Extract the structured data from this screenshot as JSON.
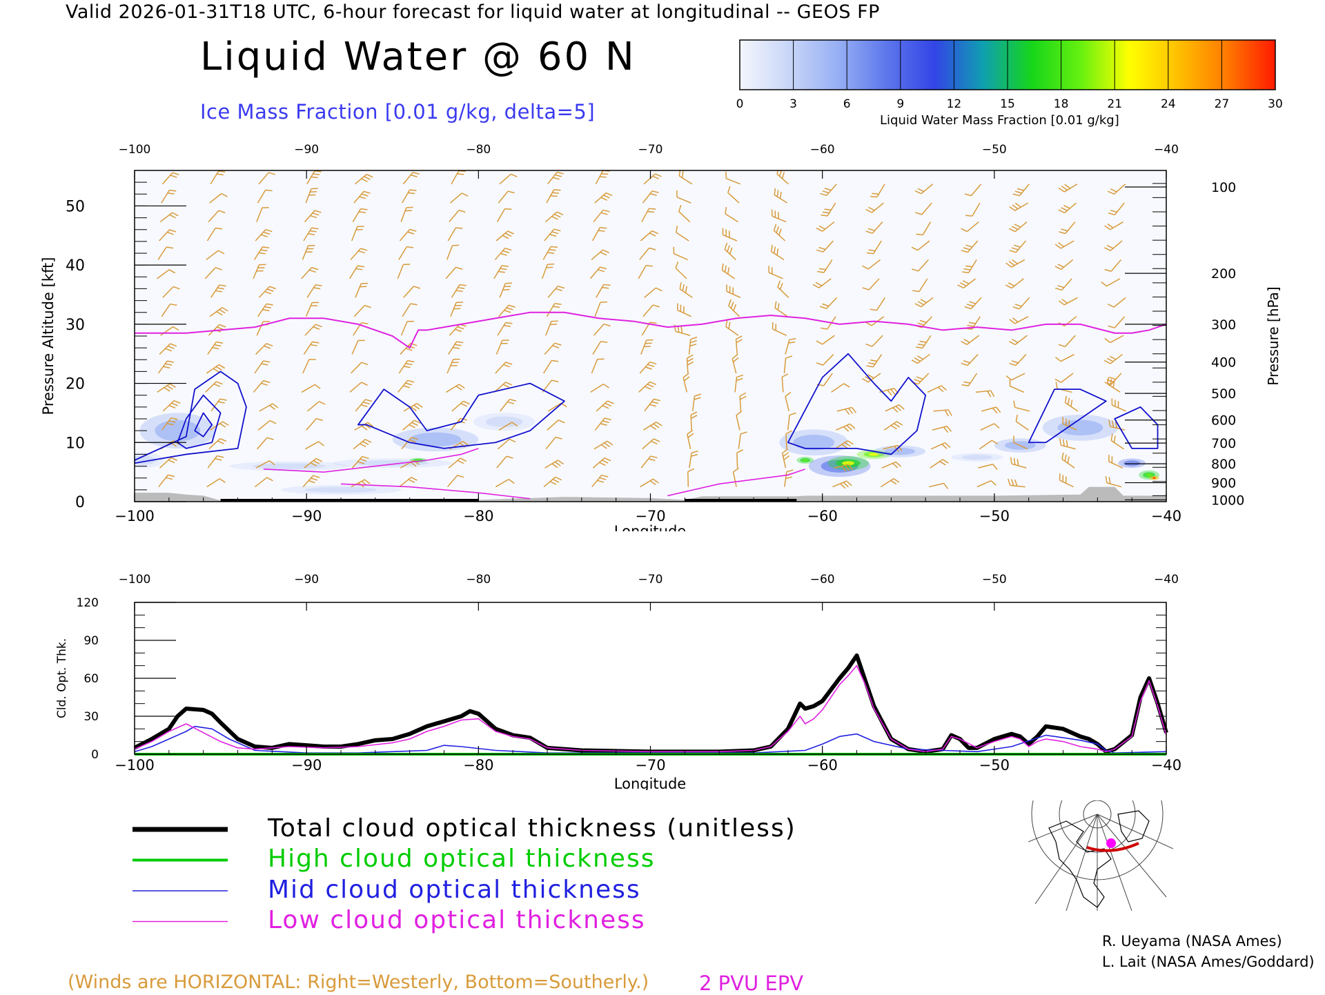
{
  "header": {
    "line": "Valid 2026-01-31T18 UTC, 6-hour forecast for liquid water at longitudinal -- GEOS FP",
    "title": "Liquid Water @ 60 N",
    "subtitle": "Ice Mass Fraction [0.01 g/kg, delta=5]"
  },
  "colorbar": {
    "label": "Liquid Water Mass Fraction [0.01 g/kg]",
    "ticks": [
      "0",
      "3",
      "6",
      "9",
      "12",
      "15",
      "18",
      "21",
      "24",
      "27",
      "30"
    ],
    "colors": [
      "#f4f6fc",
      "#c9d6f8",
      "#98b0f4",
      "#5e78ec",
      "#3344e6",
      "#0f9fb0",
      "#16d61a",
      "#66f010",
      "#ffff00",
      "#ffc000",
      "#ff7a00",
      "#ff1a00"
    ]
  },
  "colors": {
    "wind_barb": "#d89a3a",
    "pv_line": "#e020e0",
    "ice_contour": "#1010cc",
    "total": "#000000",
    "high": "#00cc00",
    "mid": "#2020e0",
    "low": "#e020e0",
    "terrain": "#bbbbbb"
  },
  "chart_data": [
    {
      "type": "heatmap",
      "title": "Liquid Water @ 60 N",
      "xlabel": "Longitude",
      "ylabel": "Pressure Altitude [kft]",
      "y2label": "Pressure [hPa]",
      "xlim": [
        -100,
        -40
      ],
      "ylim": [
        0,
        56
      ],
      "x_ticks": [
        "-100",
        "-90",
        "-80",
        "-70",
        "-60",
        "-50",
        "-40"
      ],
      "y_ticks": [
        "0",
        "10",
        "20",
        "30",
        "40",
        "50"
      ],
      "pressure_ticks": [
        {
          "label": "100",
          "kft": 53.2
        },
        {
          "label": "200",
          "kft": 38.6
        },
        {
          "label": "300",
          "kft": 30.0
        },
        {
          "label": "400",
          "kft": 23.6
        },
        {
          "label": "500",
          "kft": 18.3
        },
        {
          "label": "600",
          "kft": 13.8
        },
        {
          "label": "700",
          "kft": 9.9
        },
        {
          "label": "800",
          "kft": 6.4
        },
        {
          "label": "900",
          "kft": 3.2
        },
        {
          "label": "1000",
          "kft": 0.3
        }
      ],
      "liquid_water_blobs": [
        {
          "lon": -97.5,
          "kft": 12,
          "sx": 2.2,
          "sy": 3,
          "value": 6
        },
        {
          "lon": -99.5,
          "kft": 7,
          "sx": 1.2,
          "sy": 1.3,
          "value": 3
        },
        {
          "lon": -91,
          "kft": 6,
          "sx": 3.5,
          "sy": 0.8,
          "value": 3
        },
        {
          "lon": -85,
          "kft": 6.5,
          "sx": 3.5,
          "sy": 0.8,
          "value": 4
        },
        {
          "lon": -83.5,
          "kft": 7,
          "sx": 0.5,
          "sy": 0.4,
          "value": 16
        },
        {
          "lon": -82.5,
          "kft": 10.5,
          "sx": 2.5,
          "sy": 2,
          "value": 6
        },
        {
          "lon": -78.5,
          "kft": 13.5,
          "sx": 1.8,
          "sy": 1.5,
          "value": 4
        },
        {
          "lon": -88,
          "kft": 2,
          "sx": 3.5,
          "sy": 0.8,
          "value": 2
        },
        {
          "lon": -60.5,
          "kft": 10,
          "sx": 2,
          "sy": 2.2,
          "value": 6
        },
        {
          "lon": -61,
          "kft": 7,
          "sx": 0.5,
          "sy": 0.6,
          "value": 16
        },
        {
          "lon": -59,
          "kft": 6,
          "sx": 1.8,
          "sy": 1.8,
          "value": 9
        },
        {
          "lon": -58.5,
          "kft": 6.5,
          "sx": 1.2,
          "sy": 1.2,
          "value": 17
        },
        {
          "lon": -57,
          "kft": 8,
          "sx": 1.0,
          "sy": 0.8,
          "value": 19
        },
        {
          "lon": -55.5,
          "kft": 8.5,
          "sx": 1.5,
          "sy": 1.0,
          "value": 6
        },
        {
          "lon": -51,
          "kft": 7.5,
          "sx": 1.5,
          "sy": 0.7,
          "value": 4
        },
        {
          "lon": -48.5,
          "kft": 9.5,
          "sx": 1.5,
          "sy": 1.2,
          "value": 5
        },
        {
          "lon": -45,
          "kft": 12.5,
          "sx": 2.2,
          "sy": 2.2,
          "value": 6
        },
        {
          "lon": -42,
          "kft": 6.5,
          "sx": 0.8,
          "sy": 0.8,
          "value": 7
        },
        {
          "lon": -41,
          "kft": 4.5,
          "sx": 0.6,
          "sy": 0.8,
          "value": 16
        },
        {
          "lon": -40.7,
          "kft": 4,
          "sx": 0.3,
          "sy": 0.4,
          "value": 25
        }
      ],
      "ice_contours": [
        {
          "level": 5,
          "points": [
            [
              -100,
              7
            ],
            [
              -97,
              11
            ],
            [
              -96.5,
              19
            ],
            [
              -95,
              22
            ],
            [
              -94,
              20
            ],
            [
              -93.5,
              16
            ],
            [
              -94,
              9
            ],
            [
              -97,
              8
            ],
            [
              -100,
              6.5
            ]
          ]
        },
        {
          "level": 10,
          "points": [
            [
              -97.5,
              10
            ],
            [
              -97,
              14
            ],
            [
              -96,
              18
            ],
            [
              -95,
              15
            ],
            [
              -95.5,
              10
            ],
            [
              -97,
              9
            ]
          ]
        },
        {
          "level": 15,
          "points": [
            [
              -96.5,
              12
            ],
            [
              -96,
              15
            ],
            [
              -95.5,
              13
            ],
            [
              -96,
              11
            ]
          ]
        },
        {
          "level": 5,
          "points": [
            [
              -87,
              13
            ],
            [
              -85.5,
              19
            ],
            [
              -84,
              16
            ],
            [
              -83,
              12
            ],
            [
              -81,
              13.5
            ],
            [
              -80,
              18
            ],
            [
              -77,
              20
            ],
            [
              -75,
              17
            ],
            [
              -77,
              12
            ],
            [
              -79,
              10
            ],
            [
              -82,
              9
            ],
            [
              -84,
              10
            ],
            [
              -86.5,
              13
            ]
          ]
        },
        {
          "level": 5,
          "points": [
            [
              -62,
              10
            ],
            [
              -60,
              21
            ],
            [
              -58.5,
              25
            ],
            [
              -57,
              20
            ],
            [
              -56,
              17
            ],
            [
              -55,
              21
            ],
            [
              -54,
              18
            ],
            [
              -54.5,
              12
            ],
            [
              -56,
              8
            ],
            [
              -58,
              9
            ],
            [
              -61,
              9
            ]
          ]
        },
        {
          "level": 5,
          "points": [
            [
              -48,
              10
            ],
            [
              -46.5,
              19
            ],
            [
              -45,
              19
            ],
            [
              -43.5,
              17
            ],
            [
              -45,
              14
            ],
            [
              -46,
              12
            ],
            [
              -47,
              10
            ]
          ]
        },
        {
          "level": 5,
          "points": [
            [
              -43,
              14
            ],
            [
              -41.5,
              16
            ],
            [
              -40.5,
              13
            ],
            [
              -40.5,
              9
            ],
            [
              -42,
              9
            ]
          ]
        }
      ],
      "pv_2pvu_kft": {
        "lon": [
          -100,
          -97,
          -95,
          -93,
          -91,
          -89,
          -87,
          -85,
          -84,
          -83.5,
          -83,
          -81,
          -79,
          -77,
          -75,
          -73,
          -71,
          -70,
          -69,
          -67,
          -65,
          -63,
          -61,
          -59,
          -57,
          -55,
          -53,
          -51,
          -49,
          -47,
          -45,
          -43,
          -42,
          -41,
          -40
        ],
        "kft": [
          28.5,
          28.5,
          29,
          29.5,
          31,
          31,
          30,
          28,
          26,
          29,
          29,
          30,
          31,
          32,
          32,
          31,
          30.5,
          30,
          29.5,
          30,
          31,
          31.5,
          31,
          30,
          30.5,
          30,
          29,
          29.5,
          29,
          30,
          30,
          28.5,
          28.5,
          29,
          30
        ]
      },
      "terrain_kft": {
        "lon": [
          -100,
          -98,
          -97,
          -96,
          -95,
          -94,
          -90,
          -85,
          -80,
          -75,
          -70,
          -68,
          -67,
          -63,
          -61.5,
          -61,
          -56,
          -50,
          -45,
          -44.5,
          -43,
          -42.5,
          -40
        ],
        "kft": [
          1.5,
          1.5,
          1.2,
          1.0,
          0.2,
          0.2,
          0.2,
          0.2,
          0.3,
          0.8,
          0.6,
          0.3,
          0.9,
          0.9,
          0.9,
          1.0,
          1.0,
          1.0,
          1.2,
          2.5,
          2.5,
          1.0,
          1.0
        ]
      }
    },
    {
      "type": "line",
      "xlabel": "Longitude",
      "ylabel": "Cld. Opt. Thk.",
      "xlim": [
        -100,
        -40
      ],
      "ylim": [
        0,
        120
      ],
      "x_ticks": [
        "-100",
        "-90",
        "-80",
        "-70",
        "-60",
        "-50",
        "-40"
      ],
      "y_ticks": [
        "0",
        "30",
        "60",
        "90",
        "120"
      ],
      "series": [
        {
          "name": "Total cloud optical thickness (unitless)",
          "lon": [
            -100,
            -99,
            -98,
            -97.5,
            -97,
            -96,
            -95.5,
            -95,
            -94,
            -93,
            -92,
            -91,
            -90,
            -89,
            -88,
            -87,
            -86,
            -85,
            -84,
            -83,
            -82,
            -81,
            -80.5,
            -80,
            -79,
            -78,
            -77,
            -76,
            -74,
            -70,
            -66,
            -64,
            -63,
            -62,
            -61.3,
            -61,
            -60.5,
            -60,
            -59,
            -58.5,
            -58,
            -57.5,
            -57,
            -56,
            -55,
            -54,
            -53,
            -52.5,
            -52,
            -51.5,
            -51,
            -50,
            -49,
            -48.5,
            -48,
            -47.5,
            -47,
            -46,
            -45,
            -44.5,
            -44,
            -43.5,
            -43,
            -42,
            -41.5,
            -41,
            -40.5,
            -40
          ],
          "values": [
            5,
            12,
            20,
            30,
            36,
            35,
            32,
            25,
            12,
            6,
            5,
            8,
            7,
            6,
            6,
            8,
            11,
            12,
            16,
            22,
            26,
            30,
            34,
            32,
            20,
            15,
            13,
            5,
            3,
            2,
            2,
            3,
            6,
            20,
            40,
            36,
            38,
            42,
            60,
            68,
            78,
            58,
            38,
            12,
            4,
            2,
            4,
            15,
            12,
            5,
            5,
            12,
            16,
            14,
            8,
            14,
            22,
            20,
            14,
            12,
            8,
            2,
            4,
            15,
            45,
            60,
            40,
            17
          ]
        },
        {
          "name": "High cloud optical thickness",
          "lon": [
            -100,
            -40
          ],
          "values": [
            0,
            0
          ]
        },
        {
          "name": "Mid cloud optical thickness",
          "lon": [
            -100,
            -99,
            -98,
            -97,
            -96.5,
            -95.5,
            -94.5,
            -93,
            -90,
            -87,
            -85,
            -83,
            -82,
            -81,
            -79,
            -76,
            -70,
            -64,
            -61,
            -60,
            -59,
            -58,
            -57,
            -55,
            -53,
            -51,
            -49,
            -47,
            -45,
            -44,
            -43.5,
            -43,
            -40
          ],
          "values": [
            2,
            6,
            12,
            18,
            22,
            20,
            12,
            3,
            1,
            1,
            2,
            3,
            7,
            6,
            3,
            1,
            1,
            1,
            3,
            8,
            14,
            16,
            10,
            4,
            3,
            2,
            6,
            15,
            11,
            8,
            3,
            1,
            2
          ]
        },
        {
          "name": "Low cloud optical thickness",
          "lon": [
            -100,
            -99,
            -98,
            -97,
            -96,
            -95,
            -94,
            -93,
            -91,
            -89,
            -87,
            -85,
            -84,
            -83,
            -82,
            -81,
            -80,
            -79,
            -78,
            -77,
            -76,
            -74,
            -70,
            -66,
            -64,
            -63,
            -62,
            -61.3,
            -61,
            -60.5,
            -60,
            -59,
            -58.5,
            -58,
            -57.5,
            -57,
            -56,
            -55,
            -54,
            -53,
            -52.5,
            -52,
            -51,
            -50,
            -49,
            -48.5,
            -48,
            -47.5,
            -47,
            -46,
            -45,
            -44.5,
            -44,
            -43.5,
            -43,
            -42,
            -41.5,
            -41,
            -40.5,
            -40
          ],
          "values": [
            4,
            10,
            18,
            24,
            17,
            10,
            5,
            4,
            6,
            5,
            6,
            9,
            12,
            18,
            22,
            27,
            28,
            18,
            14,
            12,
            5,
            3,
            2,
            2,
            3,
            6,
            18,
            30,
            24,
            28,
            35,
            55,
            62,
            70,
            55,
            36,
            12,
            4,
            2,
            4,
            14,
            12,
            5,
            10,
            14,
            12,
            6,
            10,
            12,
            10,
            6,
            5,
            4,
            2,
            4,
            14,
            42,
            58,
            38,
            15
          ]
        }
      ]
    }
  ],
  "legend": [
    {
      "label": "Total cloud optical thickness (unitless)",
      "color": "#000000"
    },
    {
      "label": "High cloud optical thickness",
      "color": "#00cc00"
    },
    {
      "label": "Mid cloud optical thickness",
      "color": "#2020e0"
    },
    {
      "label": "Low cloud optical thickness",
      "color": "#e020e0"
    }
  ],
  "credits": [
    "R. Ueyama (NASA Ames)",
    "L. Lait (NASA Ames/Goddard)"
  ],
  "notes": {
    "winds": "(Winds are HORIZONTAL: Right=Westerly, Bottom=Southerly.)",
    "pv": "2 PVU EPV"
  }
}
